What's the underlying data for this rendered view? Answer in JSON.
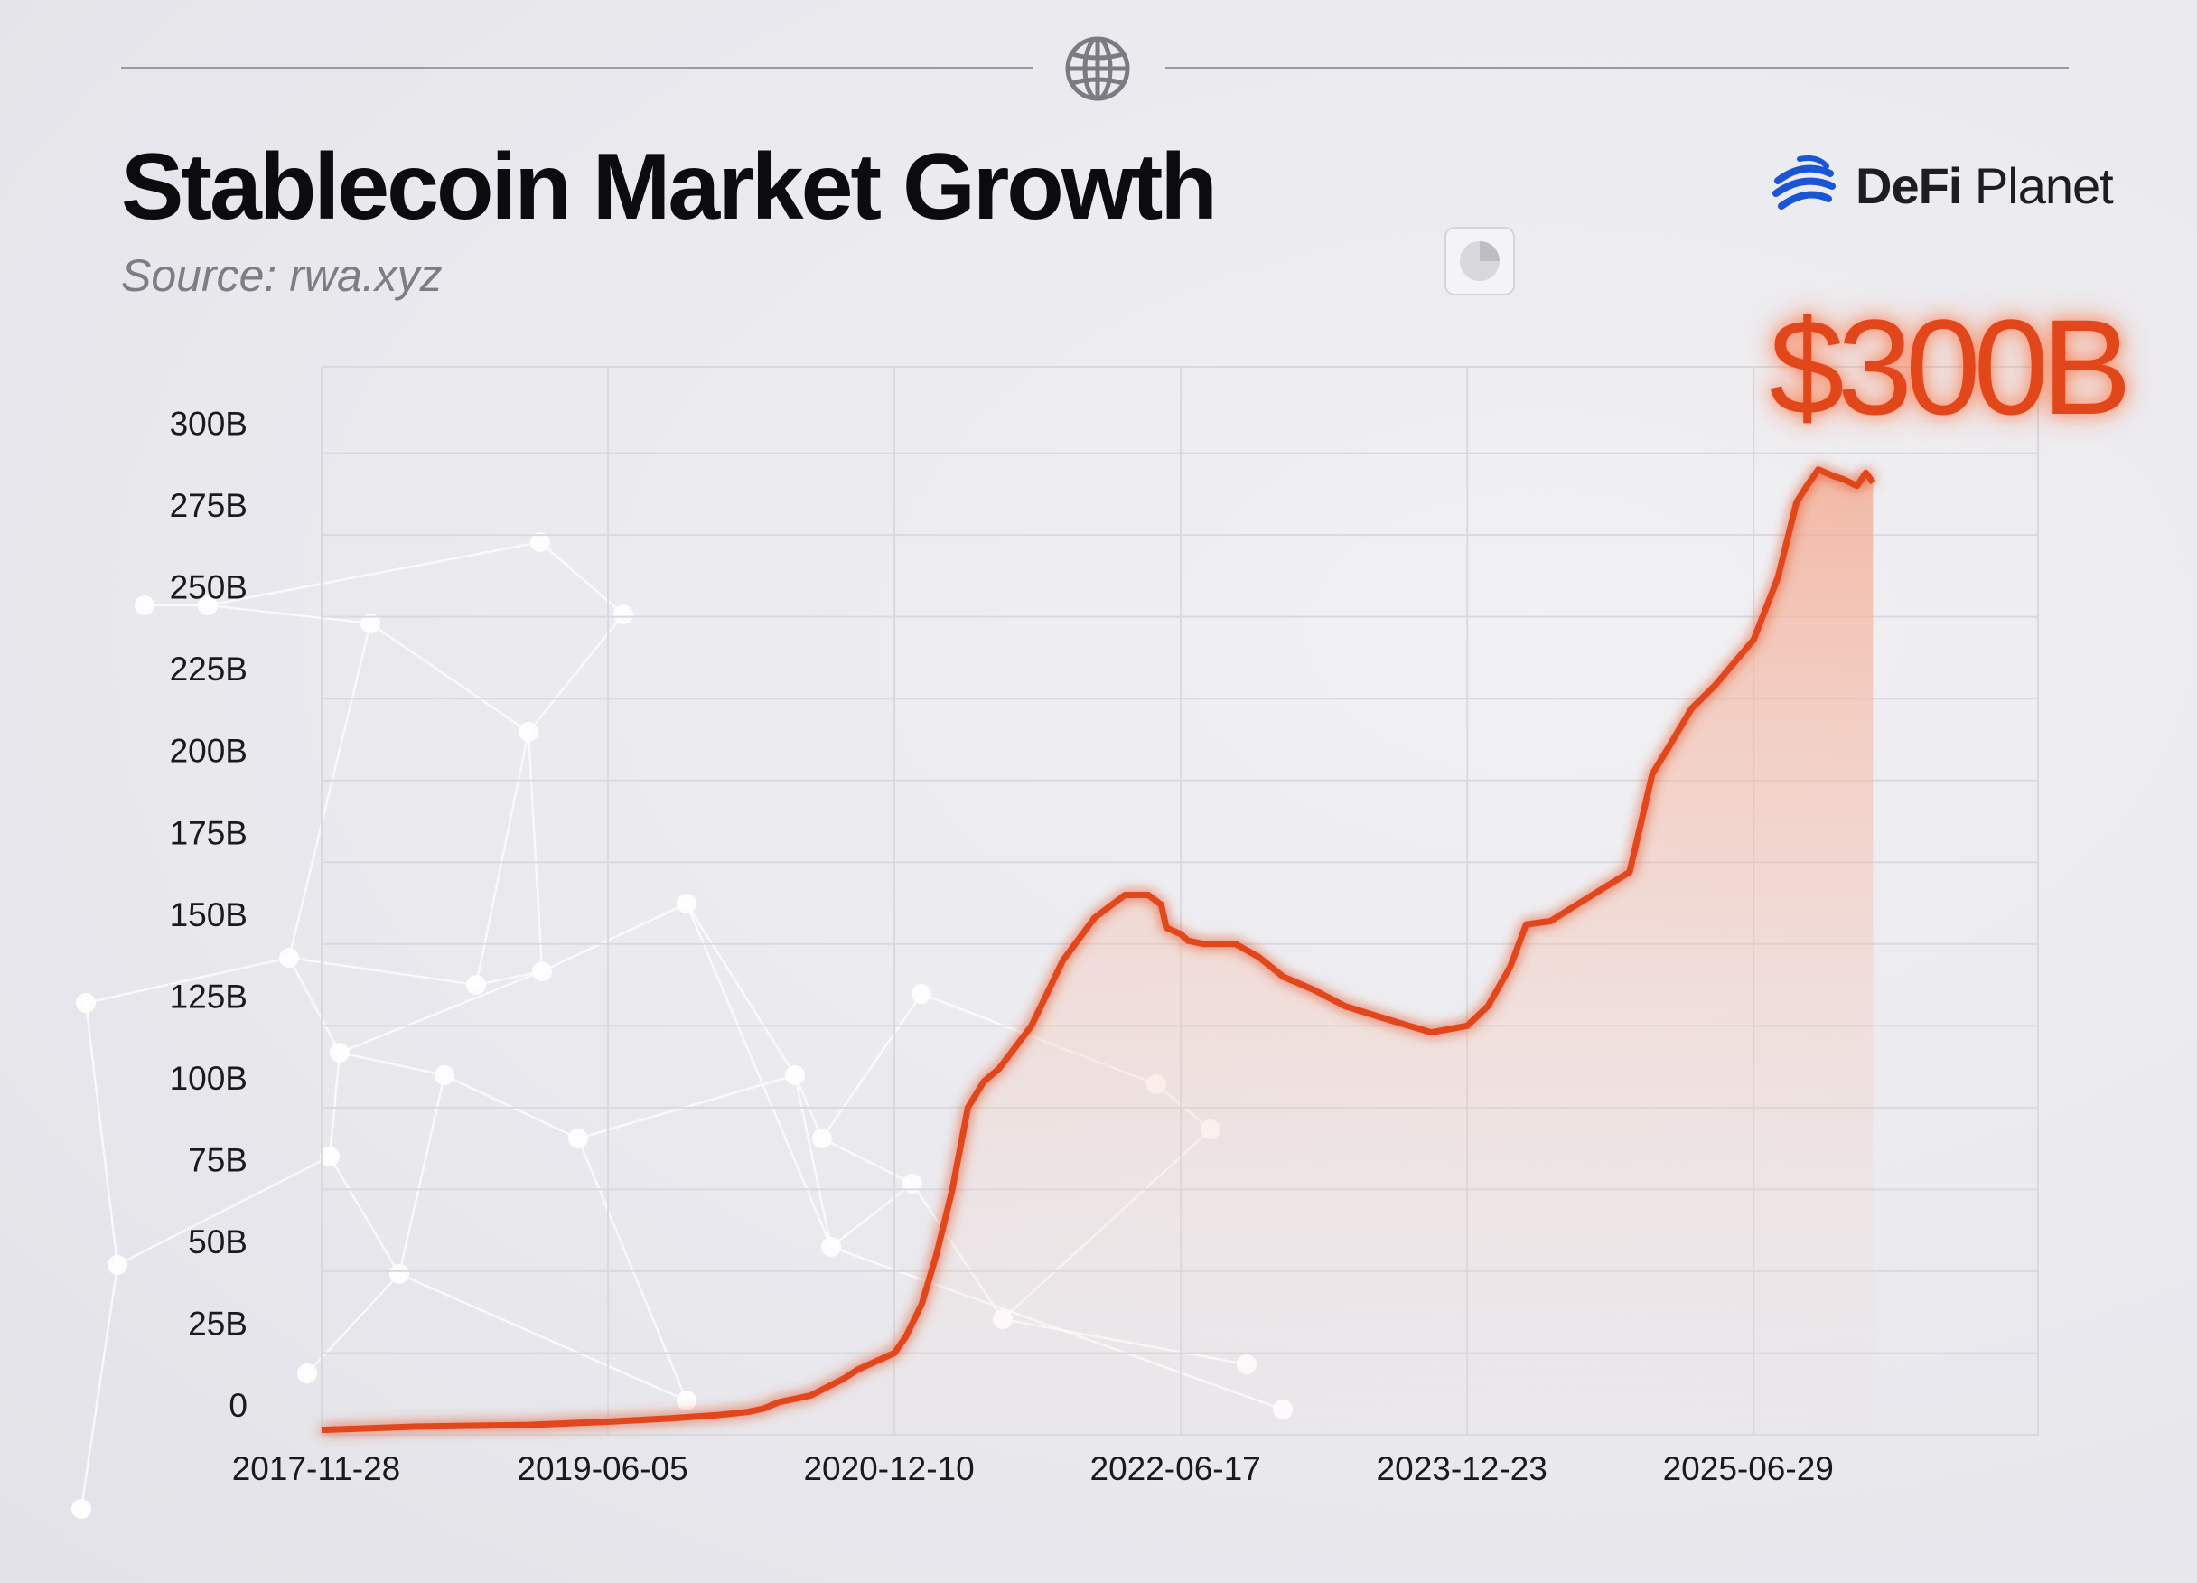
{
  "header": {
    "title": "Stablecoin Market Growth",
    "subtitle": "Source: rwa.xyz",
    "icon": "globe-icon"
  },
  "brand": {
    "name_bold": "DeFi",
    "name_regular": "Planet",
    "logo_icon": "defi-planet-logo"
  },
  "callout": "$300B",
  "colors": {
    "line": "#e2461b",
    "fill_top": "#f4a78c",
    "background": "#ebebef",
    "grid": "#d9d9df"
  },
  "chart_data": {
    "type": "area",
    "title": "Stablecoin Market Growth",
    "xlabel": "",
    "ylabel": "",
    "ylim": [
      0,
      300000000000
    ],
    "xlim": [
      "2017-11-28",
      "2026-12-31"
    ],
    "grid": true,
    "yticks": [
      {
        "value": 0,
        "label": "0"
      },
      {
        "value": 25000000000,
        "label": "25B"
      },
      {
        "value": 50000000000,
        "label": "50B"
      },
      {
        "value": 75000000000,
        "label": "75B"
      },
      {
        "value": 100000000000,
        "label": "100B"
      },
      {
        "value": 125000000000,
        "label": "125B"
      },
      {
        "value": 150000000000,
        "label": "150B"
      },
      {
        "value": 175000000000,
        "label": "175B"
      },
      {
        "value": 200000000000,
        "label": "200B"
      },
      {
        "value": 225000000000,
        "label": "225B"
      },
      {
        "value": 250000000000,
        "label": "250B"
      },
      {
        "value": 275000000000,
        "label": "275B"
      },
      {
        "value": 300000000000,
        "label": "300B"
      }
    ],
    "xticks": [
      "2017-11-28",
      "2019-06-05",
      "2020-12-10",
      "2022-06-17",
      "2023-12-23",
      "2025-06-29"
    ],
    "series": [
      {
        "points": [
          [
            "2017-11-28",
            1500000000.0
          ],
          [
            "2018-06-01",
            2500000000.0
          ],
          [
            "2019-01-01",
            3000000000.0
          ],
          [
            "2019-06-05",
            4000000000.0
          ],
          [
            "2019-10-01",
            5000000000.0
          ],
          [
            "2020-01-01",
            6000000000.0
          ],
          [
            "2020-03-01",
            7000000000.0
          ],
          [
            "2020-04-01",
            8000000000.0
          ],
          [
            "2020-05-01",
            10000000000.0
          ],
          [
            "2020-07-01",
            12000000000.0
          ],
          [
            "2020-09-01",
            17000000000.0
          ],
          [
            "2020-10-01",
            20000000000.0
          ],
          [
            "2020-12-10",
            25000000000.0
          ],
          [
            "2021-01-01",
            30000000000.0
          ],
          [
            "2021-02-01",
            40000000000.0
          ],
          [
            "2021-03-01",
            55000000000.0
          ],
          [
            "2021-04-01",
            75000000000.0
          ],
          [
            "2021-05-01",
            100000000000.0
          ],
          [
            "2021-06-01",
            108000000000.0
          ],
          [
            "2021-07-01",
            112000000000.0
          ],
          [
            "2021-09-01",
            125000000000.0
          ],
          [
            "2021-11-01",
            145000000000.0
          ],
          [
            "2022-01-01",
            158000000000.0
          ],
          [
            "2022-03-01",
            165000000000.0
          ],
          [
            "2022-04-15",
            165000000000.0
          ],
          [
            "2022-05-10",
            162000000000.0
          ],
          [
            "2022-05-20",
            155000000000.0
          ],
          [
            "2022-06-17",
            153000000000.0
          ],
          [
            "2022-07-01",
            151000000000.0
          ],
          [
            "2022-08-01",
            150000000000.0
          ],
          [
            "2022-10-01",
            150000000000.0
          ],
          [
            "2022-11-15",
            146000000000.0
          ],
          [
            "2023-01-01",
            140000000000.0
          ],
          [
            "2023-03-01",
            136000000000.0
          ],
          [
            "2023-05-01",
            131000000000.0
          ],
          [
            "2023-07-01",
            128000000000.0
          ],
          [
            "2023-09-01",
            125000000000.0
          ],
          [
            "2023-10-15",
            123000000000.0
          ],
          [
            "2023-12-23",
            125000000000.0
          ],
          [
            "2024-02-01",
            131000000000.0
          ],
          [
            "2024-03-15",
            143000000000.0
          ],
          [
            "2024-04-15",
            156000000000.0
          ],
          [
            "2024-06-01",
            157000000000.0
          ],
          [
            "2024-08-01",
            163000000000.0
          ],
          [
            "2024-10-01",
            169000000000.0
          ],
          [
            "2024-11-01",
            172000000000.0
          ],
          [
            "2024-11-20",
            185000000000.0
          ],
          [
            "2024-12-15",
            202000000000.0
          ],
          [
            "2025-01-15",
            210000000000.0
          ],
          [
            "2025-03-01",
            222000000000.0
          ],
          [
            "2025-04-15",
            229000000000.0
          ],
          [
            "2025-06-29",
            243000000000.0
          ],
          [
            "2025-08-15",
            262000000000.0
          ],
          [
            "2025-09-20",
            285000000000.0
          ],
          [
            "2025-10-10",
            290000000000.0
          ],
          [
            "2025-11-01",
            295000000000.0
          ],
          [
            "2025-12-01",
            293000000000.0
          ],
          [
            "2025-12-20",
            292000000000.0
          ],
          [
            "2026-01-15",
            290000000000.0
          ],
          [
            "2026-02-01",
            294000000000.0
          ],
          [
            "2026-02-15",
            291000000000.0
          ]
        ]
      }
    ]
  }
}
